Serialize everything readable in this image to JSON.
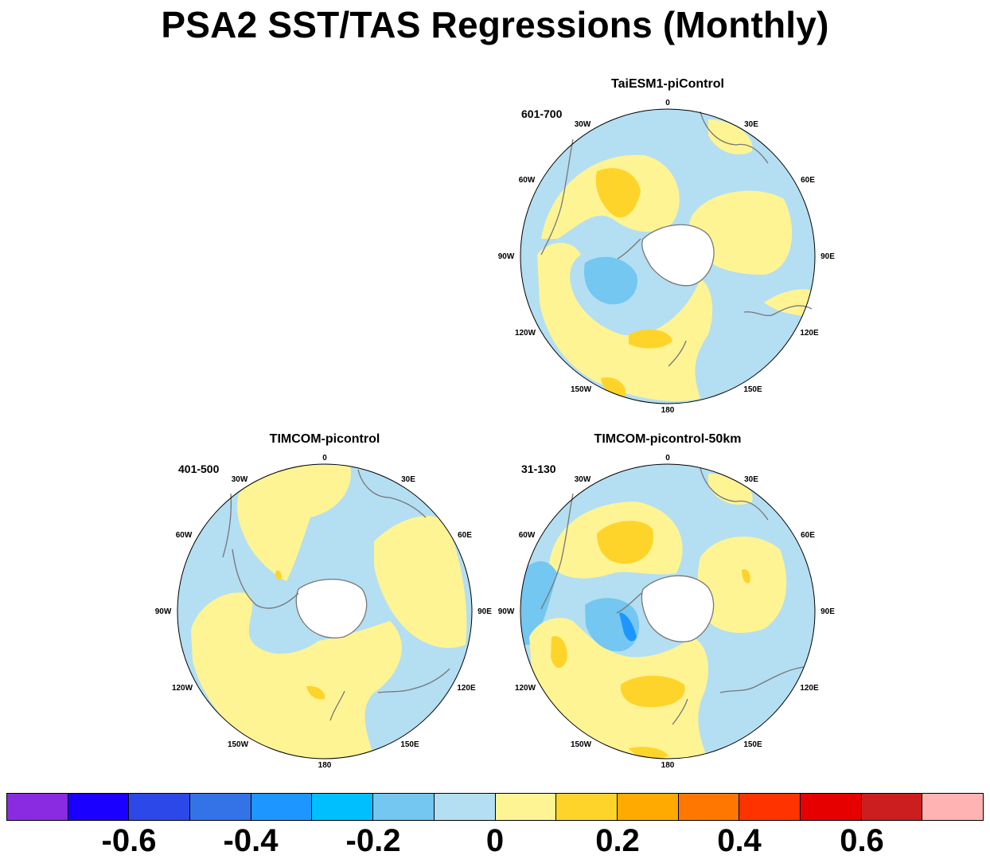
{
  "title": "PSA2 SST/TAS Regressions (Monthly)",
  "colors": {
    "levels": [
      "#8a2be2",
      "#1a00ff",
      "#2d48e8",
      "#3472e8",
      "#1e96ff",
      "#00bfff",
      "#73c7f0",
      "#b4def2",
      "#fff494",
      "#ffd42a",
      "#ffaa00",
      "#ff7700",
      "#ff3300",
      "#e60000",
      "#cc1e1e",
      "#ffb3b3"
    ],
    "land": "#ffffff",
    "coast": "#777777"
  },
  "colorbar": {
    "labels": [
      "-0.6",
      "-0.4",
      "-0.2",
      "0",
      "0.2",
      "0.4",
      "0.6"
    ]
  },
  "panels": [
    {
      "id": "taiesm1",
      "title": "TaiESM1-piControl",
      "period": "601-700",
      "lon_labels": [
        "0",
        "30E",
        "60E",
        "90E",
        "120E",
        "150E",
        "180",
        "150W",
        "120W",
        "90W",
        "60W",
        "30W"
      ]
    },
    {
      "id": "timcom",
      "title": "TIMCOM-picontrol",
      "period": "401-500",
      "lon_labels": [
        "0",
        "30E",
        "60E",
        "90E",
        "120E",
        "150E",
        "180",
        "150W",
        "120W",
        "90W",
        "60W",
        "30W"
      ]
    },
    {
      "id": "timcom50",
      "title": "TIMCOM-picontrol-50km",
      "period": "31-130",
      "lon_labels": [
        "0",
        "30E",
        "60E",
        "90E",
        "120E",
        "150E",
        "180",
        "150W",
        "120W",
        "90W",
        "60W",
        "30W"
      ]
    }
  ]
}
